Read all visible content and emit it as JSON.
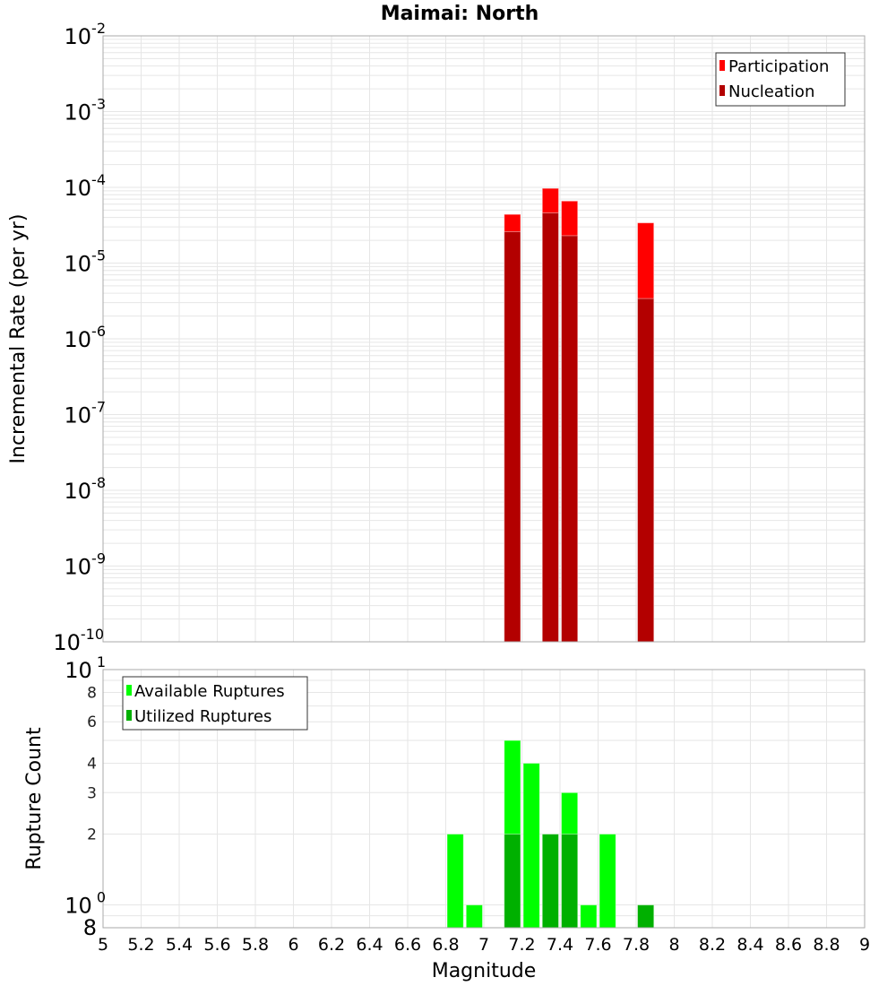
{
  "chart_data": [
    {
      "type": "bar",
      "title": "Maimai: North",
      "xlabel": "Magnitude",
      "ylabel": "Incremental Rate (per yr)",
      "yscale": "log",
      "xlim": [
        5,
        9
      ],
      "ylim": [
        1e-10,
        0.01
      ],
      "ytick_exponents": [
        -2,
        -3,
        -4,
        -5,
        -6,
        -7,
        -8,
        -9,
        -10
      ],
      "grid": true,
      "legend_position": "top-right",
      "bin_width": 0.1,
      "x": [
        7.15,
        7.35,
        7.45,
        7.85
      ],
      "series": [
        {
          "name": "Participation",
          "color": "#ff0000",
          "values": [
            4.4e-05,
            9.7e-05,
            6.6e-05,
            3.4e-05
          ]
        },
        {
          "name": "Nucleation",
          "color": "#b30000",
          "values": [
            2.6e-05,
            4.6e-05,
            2.3e-05,
            3.4e-06
          ]
        }
      ]
    },
    {
      "type": "bar",
      "title": "",
      "xlabel": "Magnitude",
      "ylabel": "Rupture Count",
      "yscale": "log",
      "xlim": [
        5,
        9
      ],
      "ylim": [
        0.8,
        10
      ],
      "ytick_major": [
        {
          "base": "10",
          "exp": "1",
          "value": 10
        },
        {
          "base": "10",
          "exp": "0",
          "value": 1
        }
      ],
      "ytick_minor": [
        8,
        6,
        4,
        3,
        2
      ],
      "ytick_bottom": "8",
      "xticks": [
        "5",
        "5.2",
        "5.4",
        "5.6",
        "5.8",
        "6",
        "6.2",
        "6.4",
        "6.6",
        "6.8",
        "7",
        "7.2",
        "7.4",
        "7.6",
        "7.8",
        "8",
        "8.2",
        "8.4",
        "8.6",
        "8.8",
        "9"
      ],
      "grid": true,
      "legend_position": "top-left",
      "bin_width": 0.1,
      "x": [
        6.85,
        6.95,
        7.15,
        7.25,
        7.35,
        7.45,
        7.55,
        7.65,
        7.85
      ],
      "series": [
        {
          "name": "Available Ruptures",
          "color": "#00ff00",
          "values": [
            2,
            1,
            5,
            4,
            2,
            3,
            1,
            2,
            1
          ]
        },
        {
          "name": "Utilized Ruptures",
          "color": "#00b000",
          "values": [
            0,
            0,
            2,
            0,
            2,
            2,
            0,
            0,
            1
          ]
        }
      ]
    }
  ]
}
